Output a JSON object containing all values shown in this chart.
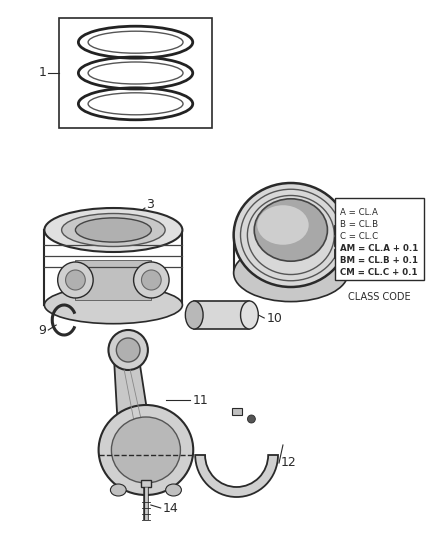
{
  "bg_color": "#ffffff",
  "line_color": "#2a2a2a",
  "class_code_lines": [
    "A = CL.A",
    "B = CL.B",
    "C = CL.C",
    "AM = CL.A + 0.1",
    "BM = CL.B + 0.1",
    "CM = CL.C + 0.1"
  ],
  "class_code_label": "CLASS CODE",
  "figsize": [
    4.38,
    5.33
  ],
  "dpi": 100
}
